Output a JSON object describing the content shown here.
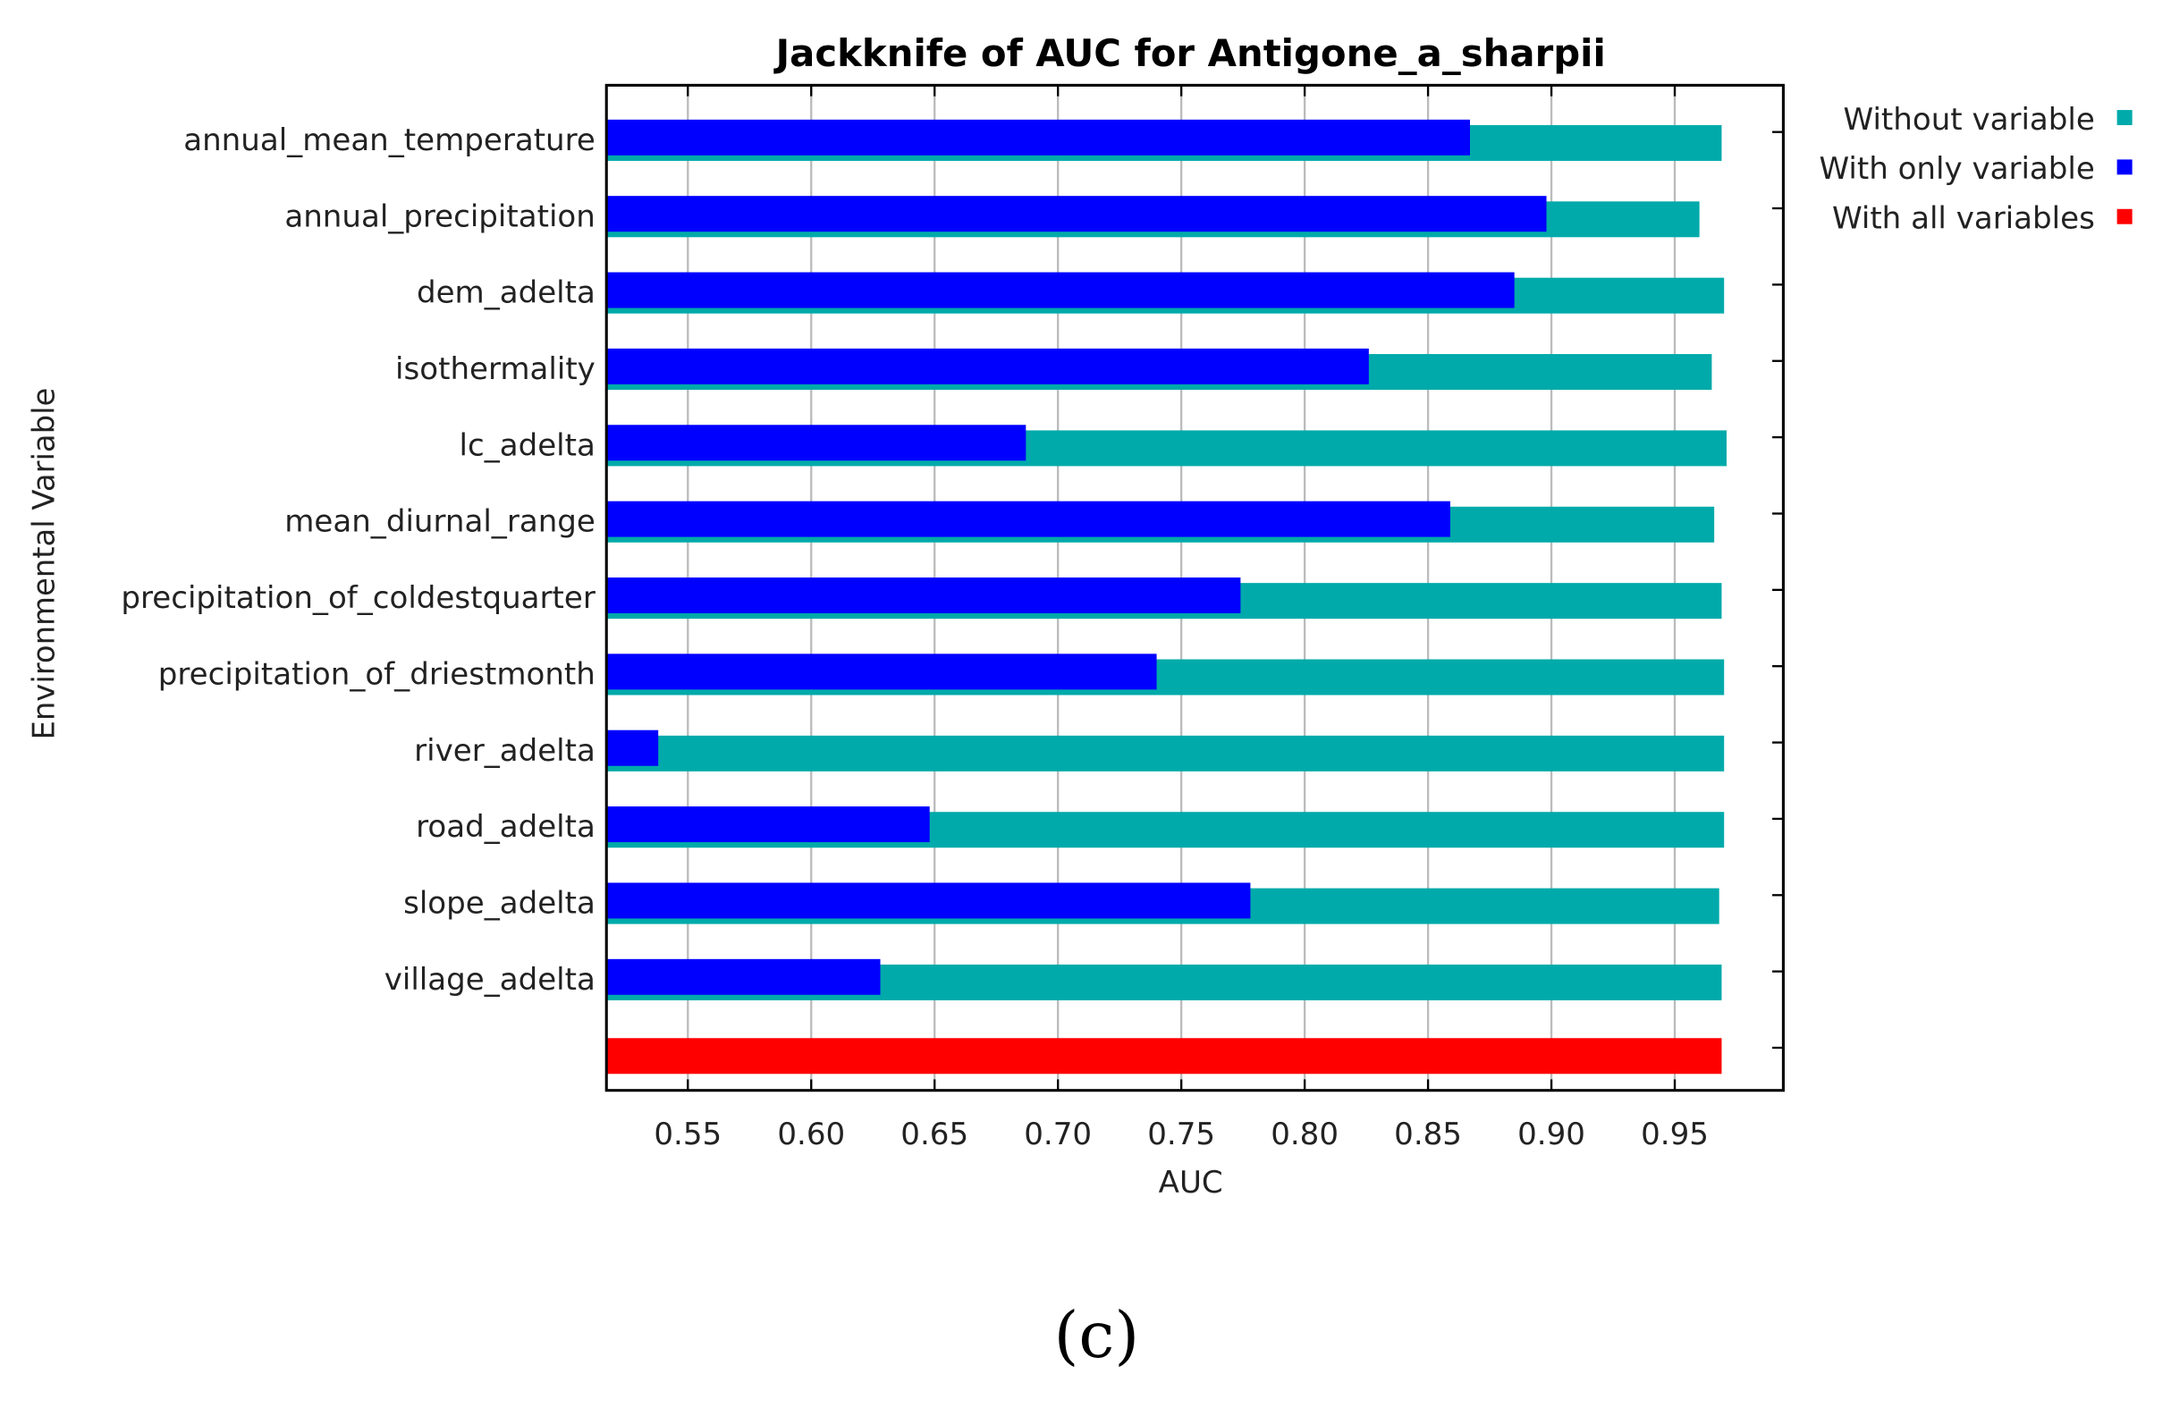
{
  "chart_data": {
    "type": "bar",
    "orientation": "horizontal",
    "title": "Jackknife of AUC for Antigone_a_sharpii",
    "x_label": "AUC",
    "y_label": "Environmental Variable",
    "caption": "(c)",
    "categories": [
      "annual_mean_temperature",
      "annual_precipitation",
      "dem_adelta",
      "isothermality",
      "lc_adelta",
      "mean_diurnal_range",
      "precipitation_of_coldestquarter",
      "precipitation_of_driestmonth",
      "river_adelta",
      "road_adelta",
      "slope_adelta",
      "village_adelta",
      null
    ],
    "series": [
      {
        "name": "Without variable",
        "color": "#00aaaa",
        "values": [
          0.969,
          0.96,
          0.97,
          0.965,
          0.971,
          0.966,
          0.969,
          0.97,
          0.97,
          0.97,
          0.968,
          0.969,
          null
        ]
      },
      {
        "name": "With only variable",
        "color": "#0000ff",
        "values": [
          0.867,
          0.898,
          0.885,
          0.826,
          0.687,
          0.859,
          0.774,
          0.74,
          0.538,
          0.648,
          0.778,
          0.628,
          null
        ]
      },
      {
        "name": "With all variables",
        "color": "#ff0000",
        "values": [
          null,
          null,
          null,
          null,
          null,
          null,
          null,
          null,
          null,
          null,
          null,
          null,
          0.969
        ]
      }
    ],
    "xlim": [
      0.517,
      0.994
    ],
    "xticks": [
      {
        "value": 0.55,
        "label": "0.55"
      },
      {
        "value": 0.6,
        "label": "0.60"
      },
      {
        "value": 0.65,
        "label": "0.65"
      },
      {
        "value": 0.7,
        "label": "0.70"
      },
      {
        "value": 0.75,
        "label": "0.75"
      },
      {
        "value": 0.8,
        "label": "0.80"
      },
      {
        "value": 0.85,
        "label": "0.85"
      },
      {
        "value": 0.9,
        "label": "0.90"
      },
      {
        "value": 0.95,
        "label": "0.95"
      }
    ],
    "grid": true,
    "legend": "outside-right"
  }
}
